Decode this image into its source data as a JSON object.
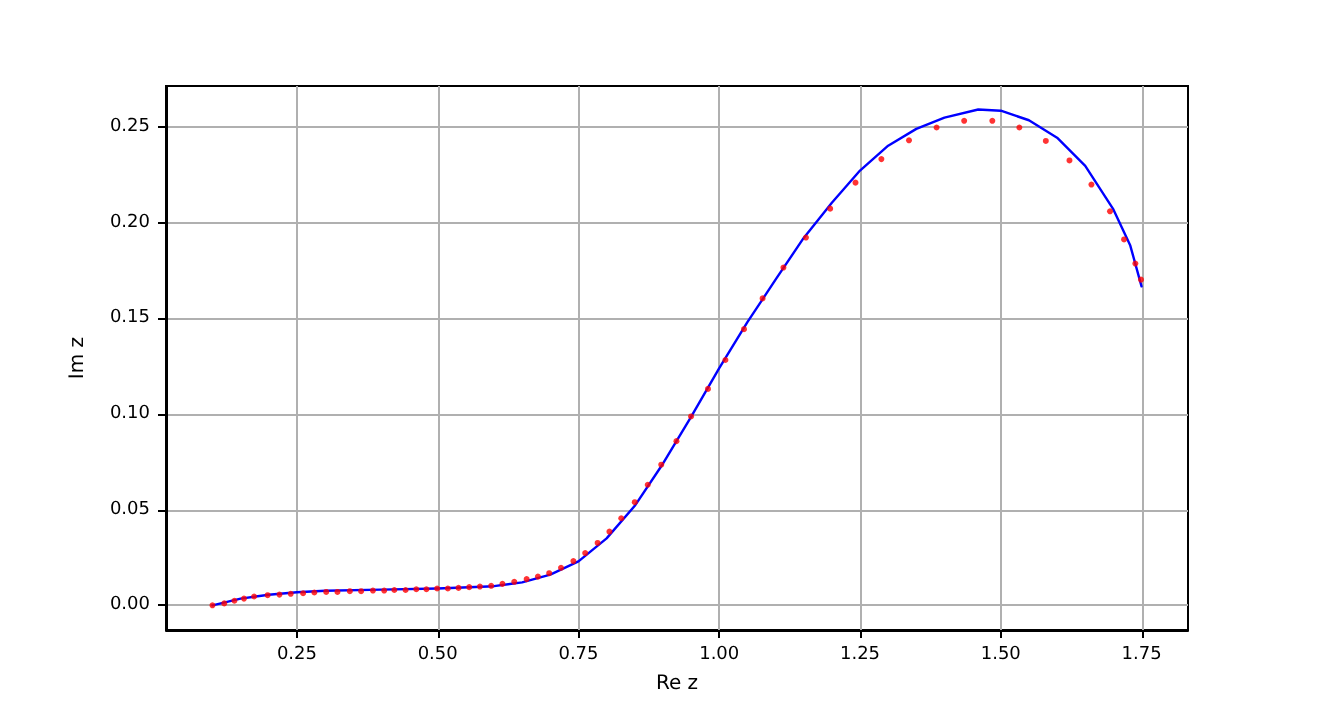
{
  "chart_data": {
    "type": "line",
    "xlabel": "Re z",
    "ylabel": "Im z",
    "xlim": [
      0.0175,
      1.8325
    ],
    "ylim": [
      -0.0129,
      0.2714
    ],
    "xticks": [
      0.25,
      {
        "value": 0.5,
        "label": "0.50"
      },
      0.75,
      {
        "value": 1,
        "label": "1.00"
      },
      1.25,
      {
        "value": 1.5,
        "label": "1.50"
      },
      1.75
    ],
    "yticks": [
      {
        "value": 0,
        "label": "0.00"
      },
      0.05,
      {
        "value": 0.1,
        "label": "0.10"
      },
      0.15,
      {
        "value": 0.2,
        "label": "0.20"
      },
      0.25
    ],
    "grid": true,
    "series": [
      {
        "color": "#0000ff",
        "marker": "none",
        "line_style": "solid",
        "x": [
          0.1,
          0.15,
          0.2,
          0.25,
          0.3,
          0.4,
          0.5,
          0.6,
          0.65,
          0.7,
          0.75,
          0.8,
          0.85,
          0.9,
          0.95,
          1.0,
          1.05,
          1.1,
          1.15,
          1.2,
          1.25,
          1.3,
          1.35,
          1.4,
          1.46,
          1.5,
          1.55,
          1.6,
          1.65,
          1.7,
          1.73,
          1.75
        ],
        "values": [
          0,
          0.0035,
          0.0055,
          0.0068,
          0.0076,
          0.0082,
          0.0088,
          0.01,
          0.012,
          0.016,
          0.023,
          0.035,
          0.052,
          0.074,
          0.0985,
          0.124,
          0.148,
          0.1702,
          0.192,
          0.2104,
          0.2272,
          0.2402,
          0.249,
          0.2549,
          0.2591,
          0.2585,
          0.2535,
          0.2444,
          0.2297,
          0.2069,
          0.188,
          0.1667
        ]
      },
      {
        "type": "scatter",
        "color": "#ff0000",
        "marker": "circle",
        "x": [
          0.1,
          0.121,
          0.139,
          0.156,
          0.174,
          0.198,
          0.219,
          0.239,
          0.261,
          0.281,
          0.302,
          0.322,
          0.344,
          0.364,
          0.385,
          0.405,
          0.423,
          0.443,
          0.462,
          0.48,
          0.499,
          0.518,
          0.537,
          0.556,
          0.575,
          0.595,
          0.615,
          0.636,
          0.658,
          0.678,
          0.698,
          0.719,
          0.741,
          0.762,
          0.784,
          0.805,
          0.826,
          0.85,
          0.873,
          0.897,
          0.924,
          0.95,
          0.98,
          1.011,
          1.044,
          1.077,
          1.114,
          1.154,
          1.197,
          1.242,
          1.288,
          1.337,
          1.386,
          1.435,
          1.485,
          1.533,
          1.58,
          1.622,
          1.661,
          1.694,
          1.719,
          1.739,
          1.749
        ],
        "values": [
          0,
          0.001,
          0.0024,
          0.0035,
          0.0046,
          0.0053,
          0.0056,
          0.006,
          0.0063,
          0.0067,
          0.007,
          0.007,
          0.0074,
          0.0074,
          0.0077,
          0.0077,
          0.008,
          0.008,
          0.0084,
          0.0084,
          0.0088,
          0.0088,
          0.0091,
          0.0095,
          0.0098,
          0.0102,
          0.0112,
          0.0123,
          0.0137,
          0.015,
          0.0168,
          0.0196,
          0.0231,
          0.0273,
          0.0326,
          0.0385,
          0.0455,
          0.0539,
          0.063,
          0.0735,
          0.0858,
          0.0987,
          0.1131,
          0.1282,
          0.1443,
          0.1604,
          0.1765,
          0.1922,
          0.2073,
          0.2209,
          0.2332,
          0.243,
          0.2497,
          0.2532,
          0.2532,
          0.2497,
          0.2427,
          0.2325,
          0.2199,
          0.2059,
          0.1912,
          0.1786,
          0.1702
        ]
      }
    ]
  }
}
